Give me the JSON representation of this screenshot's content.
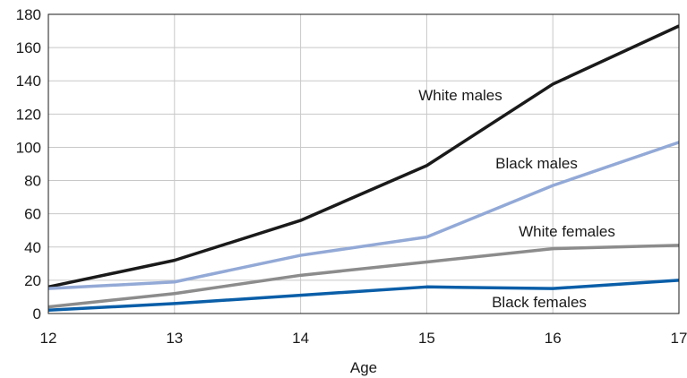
{
  "chart_data": {
    "type": "line",
    "x": [
      12,
      13,
      14,
      15,
      16,
      17
    ],
    "xlabel": "Age",
    "ylabel": "",
    "xlim": [
      12,
      17
    ],
    "ylim": [
      0,
      180
    ],
    "yticks": [
      0,
      20,
      40,
      60,
      80,
      100,
      120,
      140,
      160,
      180
    ],
    "xticks": [
      12,
      13,
      14,
      15,
      16,
      17
    ],
    "grid": true,
    "legend": "none",
    "series": [
      {
        "name": "White males",
        "color": "#1a1a1a",
        "values": [
          16,
          32,
          56,
          89,
          138,
          173
        ]
      },
      {
        "name": "Black males",
        "color": "#93a9d6",
        "values": [
          15,
          19,
          35,
          46,
          77,
          103
        ]
      },
      {
        "name": "White females",
        "color": "#8c8c8c",
        "values": [
          4,
          12,
          23,
          31,
          39,
          41
        ]
      },
      {
        "name": "Black females",
        "color": "#0a5ea8",
        "values": [
          2,
          6,
          11,
          16,
          15,
          20
        ]
      }
    ]
  }
}
